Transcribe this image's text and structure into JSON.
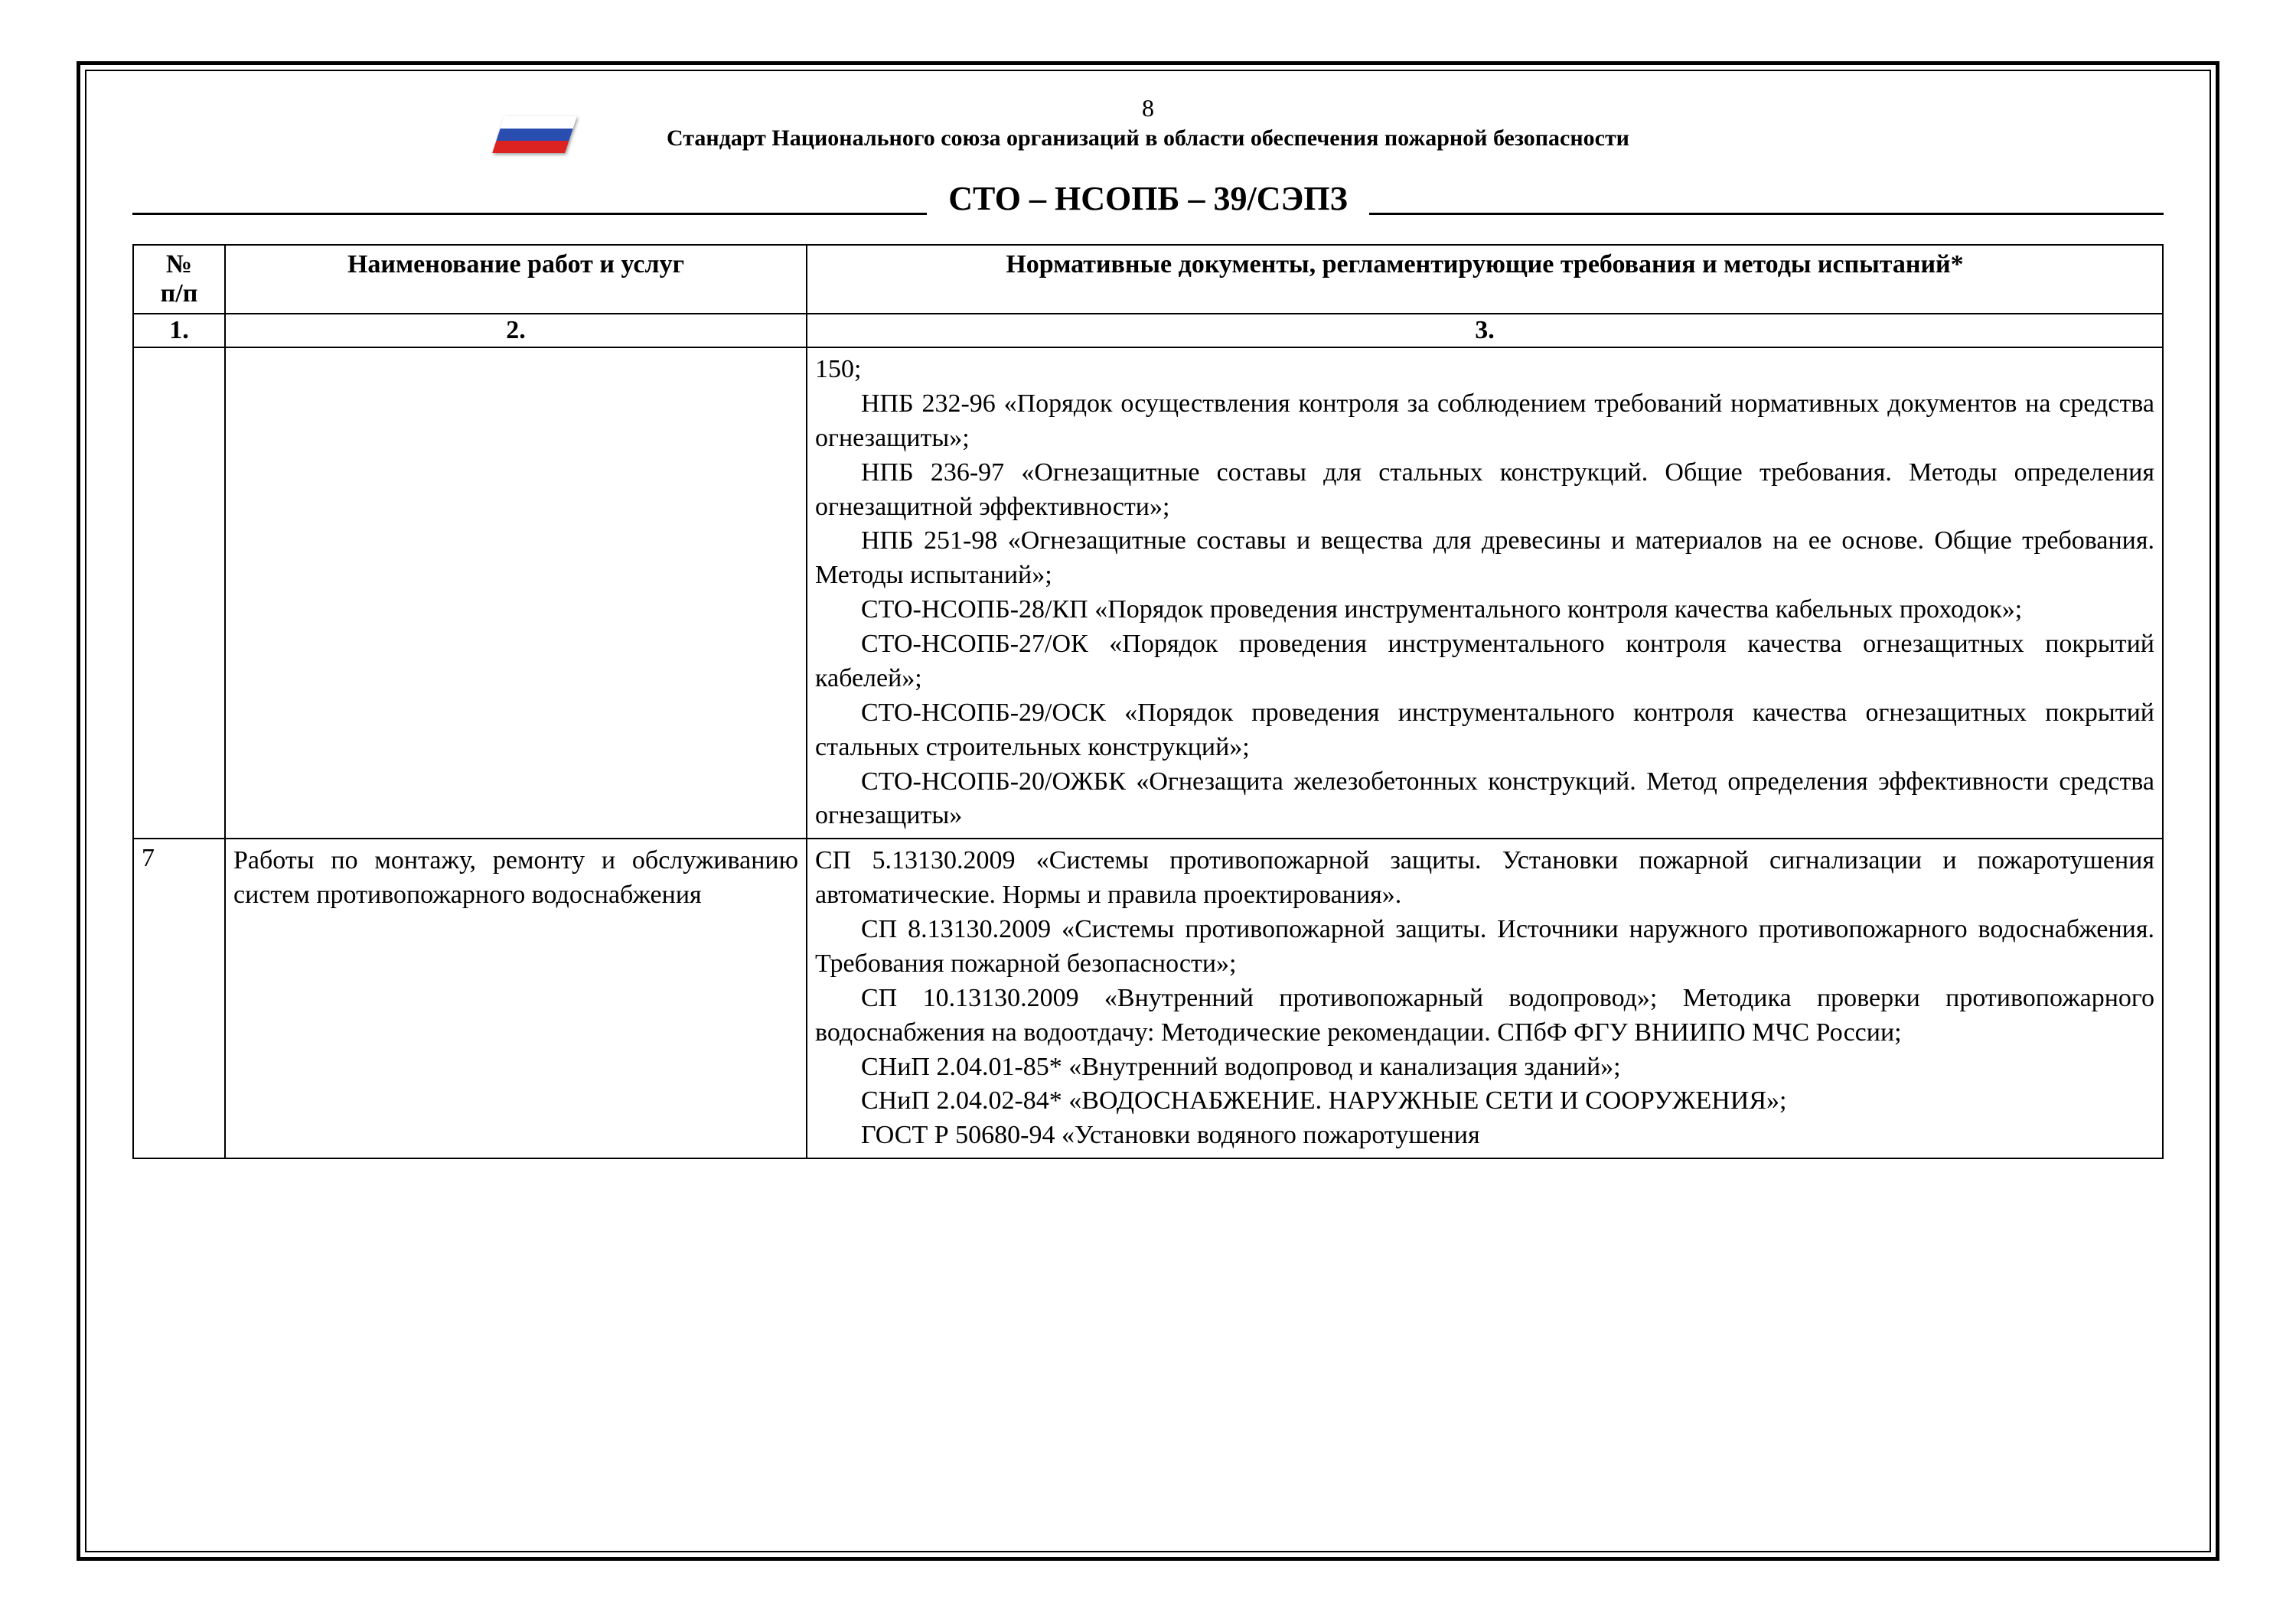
{
  "page_number": "8",
  "header_sup": "Стандарт Национального союза организаций в области обеспечения пожарной безопасности",
  "logo_label": "НСОПБ",
  "doc_title": "СТО – НСОПБ – 39/СЭПЗ",
  "table": {
    "headers": {
      "c1": "№\nп/п",
      "c2": "Наименование работ и услуг",
      "c3": "Нормативные документы, регламентирующие требования и методы испытаний*"
    },
    "num_row": {
      "c1": "1.",
      "c2": "2.",
      "c3": "3."
    },
    "rows": [
      {
        "c1": "",
        "c2": "",
        "c3": [
          "150;",
          "НПБ 232-96 «Порядок осуществления контроля за соблюдением требований нормативных документов на средства огнезащиты»;",
          "НПБ 236-97 «Огнезащитные составы для стальных конструкций. Общие требования. Методы определения огнезащитной эффективности»;",
          "НПБ 251-98 «Огнезащитные составы и вещества для древесины и материалов на ее основе. Общие требования. Методы испытаний»;",
          "  СТО-НСОПБ-28/КП «Порядок проведения инструментального контроля качества кабельных проходок»;",
          "  СТО-НСОПБ-27/ОК «Порядок проведения инструментального контроля качества огнезащитных покрытий кабелей»;",
          "  СТО-НСОПБ-29/ОСК «Порядок проведения инструментального контроля качества огнезащитных покрытий стальных строительных конструкций»;",
          "СТО-НСОПБ-20/ОЖБК «Огнезащита железобетонных конструкций. Метод определения эффективности средства огнезащиты»"
        ]
      },
      {
        "c1": "7",
        "c2": "Работы по монтажу, ремонту и обслуживанию систем противопожарного водоснабжения",
        "c3": [
          "СП 5.13130.2009 «Системы противопожарной защиты. Установки пожарной сигнализации и пожаротушения автоматические. Нормы и правила проектирования».",
          "СП 8.13130.2009 «Системы противопожарной защиты. Источники наружного противопожарного водоснабжения. Требования пожарной безопасности»;",
          "СП 10.13130.2009 «Внутренний противопожарный водопровод»; Методика проверки противопожарного водоснабжения на водоотдачу: Методические рекомендации. СПбФ ФГУ ВНИИПО МЧС России;",
          "СНиП 2.04.01-85* «Внутренний водопровод и канализация зданий»;",
          "СНиП 2.04.02-84* «ВОДОСНАБЖЕНИЕ.  НАРУЖНЫЕ СЕТИ И СООРУЖЕНИЯ»;",
          "ГОСТ Р 50680-94 «Установки водяного пожаротушения"
        ]
      }
    ]
  }
}
